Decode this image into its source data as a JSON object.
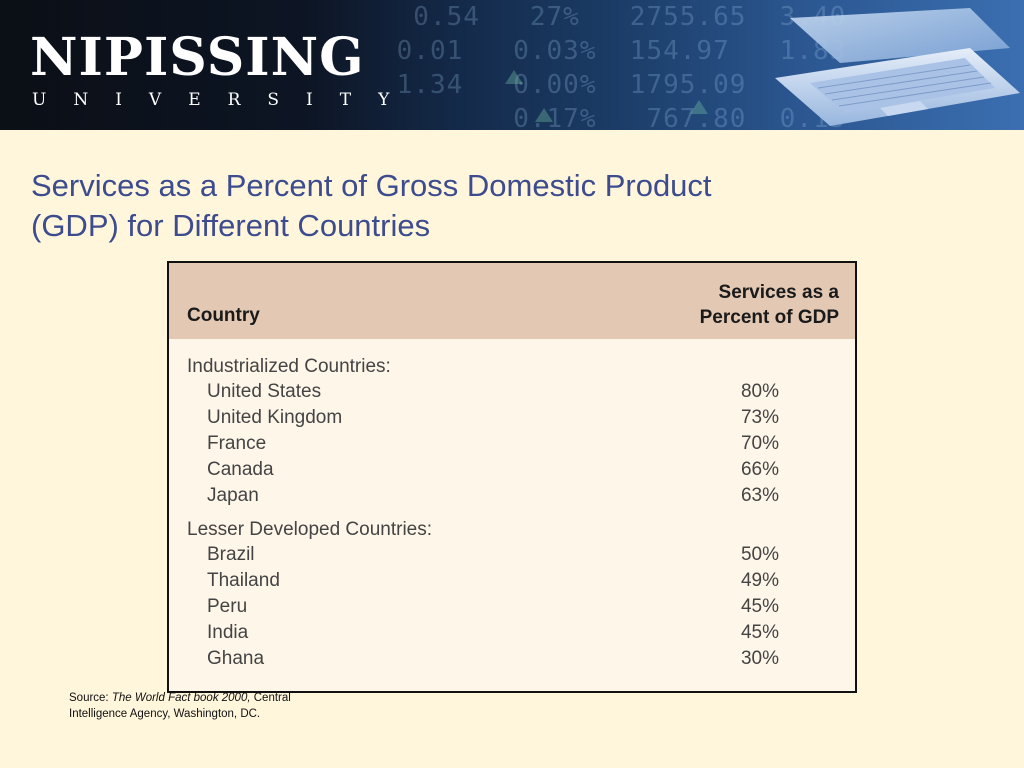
{
  "header": {
    "logo_name": "NIPISSING",
    "logo_sub": "UNIVERSITY"
  },
  "title": {
    "line1": "Services as a Percent of Gross Domestic Product",
    "line2": "(GDP)  for Different Countries"
  },
  "table": {
    "col_country": "Country",
    "col_services_line1": "Services as a",
    "col_services_line2": "Percent of GDP",
    "groups": [
      {
        "label": "Industrialized Countries:",
        "rows": [
          {
            "country": "United States",
            "value": "80%"
          },
          {
            "country": "United Kingdom",
            "value": "73%"
          },
          {
            "country": "France",
            "value": "70%"
          },
          {
            "country": "Canada",
            "value": "66%"
          },
          {
            "country": "Japan",
            "value": "63%"
          }
        ]
      },
      {
        "label": "Lesser Developed Countries:",
        "rows": [
          {
            "country": "Brazil",
            "value": "50%"
          },
          {
            "country": "Thailand",
            "value": "49%"
          },
          {
            "country": "Peru",
            "value": "45%"
          },
          {
            "country": "India",
            "value": "45%"
          },
          {
            "country": "Ghana",
            "value": "30%"
          }
        ]
      }
    ]
  },
  "source": {
    "prefix": "Source: ",
    "italic": "The World Fact book 2000,",
    "line1_rest": " Central",
    "line2": "Intelligence Agency, Washington, DC."
  },
  "colors": {
    "background": "#fff6dc",
    "title": "#3d4c8e",
    "table_header": "#e3c8b3",
    "table_body": "#fef6e9"
  }
}
